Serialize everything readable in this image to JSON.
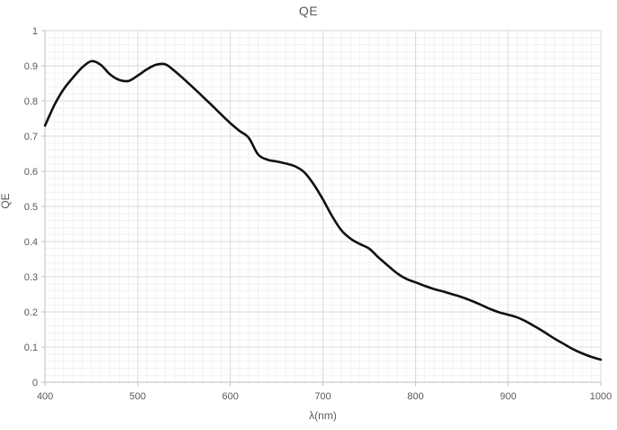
{
  "chart_data": {
    "type": "line",
    "title": "QE",
    "xlabel": "λ(nm)",
    "ylabel": "QE",
    "xlim": [
      400,
      1000
    ],
    "ylim": [
      0,
      1
    ],
    "x_major_ticks": [
      400,
      500,
      600,
      700,
      800,
      900,
      1000
    ],
    "x_tick_labels": [
      "400",
      "500",
      "600",
      "700",
      "800",
      "900",
      "1000"
    ],
    "y_major_ticks": [
      0,
      0.1,
      0.2,
      0.3,
      0.4,
      0.5,
      0.6,
      0.7,
      0.8,
      0.9,
      1
    ],
    "y_tick_labels": [
      "0",
      "0.1",
      "0.2",
      "0.3",
      "0.4",
      "0.5",
      "0.6",
      "0.7",
      "0.8",
      "0.9",
      "1"
    ],
    "x_minor_step": 10,
    "y_minor_step": 0.02,
    "grid": "major-and-minor",
    "legend": "none",
    "series": [
      {
        "name": "QE",
        "x": [
          400,
          410,
          420,
          430,
          440,
          450,
          460,
          470,
          480,
          490,
          500,
          510,
          520,
          530,
          540,
          550,
          560,
          570,
          580,
          590,
          600,
          610,
          620,
          630,
          640,
          650,
          660,
          670,
          680,
          690,
          700,
          710,
          720,
          730,
          740,
          750,
          760,
          770,
          780,
          790,
          800,
          810,
          820,
          830,
          840,
          850,
          860,
          870,
          880,
          890,
          900,
          910,
          920,
          930,
          940,
          950,
          960,
          970,
          980,
          990,
          1000
        ],
        "y": [
          0.73,
          0.788,
          0.833,
          0.866,
          0.895,
          0.913,
          0.903,
          0.876,
          0.86,
          0.857,
          0.872,
          0.89,
          0.903,
          0.904,
          0.885,
          0.862,
          0.838,
          0.813,
          0.788,
          0.762,
          0.737,
          0.715,
          0.695,
          0.648,
          0.633,
          0.628,
          0.622,
          0.614,
          0.597,
          0.563,
          0.52,
          0.472,
          0.432,
          0.408,
          0.393,
          0.38,
          0.355,
          0.332,
          0.31,
          0.294,
          0.284,
          0.274,
          0.265,
          0.258,
          0.25,
          0.242,
          0.232,
          0.221,
          0.209,
          0.199,
          0.192,
          0.184,
          0.172,
          0.157,
          0.141,
          0.124,
          0.109,
          0.094,
          0.082,
          0.072,
          0.064
        ]
      }
    ],
    "colors": {
      "line": "#111111",
      "major_grid": "#d9d9d9",
      "minor_grid": "#f2f2f2",
      "axis_line": "#bfbfbf",
      "text": "#595959",
      "background": "#ffffff"
    }
  }
}
